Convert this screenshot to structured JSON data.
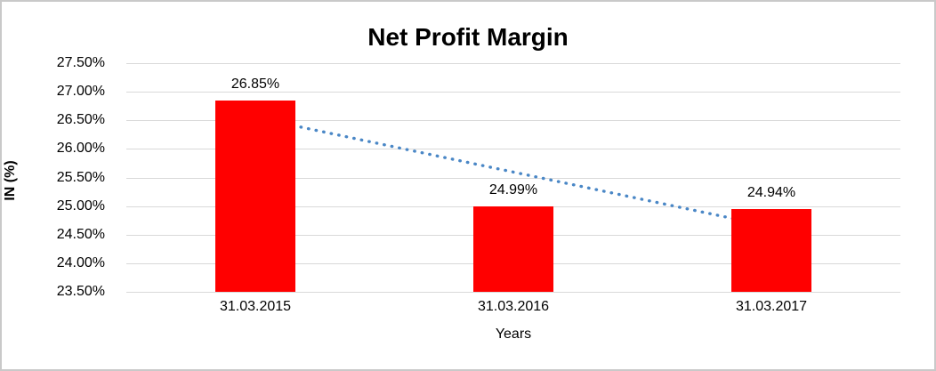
{
  "chart_data": {
    "type": "bar",
    "title": "Net Profit Margin",
    "xlabel": "Years",
    "ylabel": "IN (%)",
    "categories": [
      "31.03.2015",
      "31.03.2016",
      "31.03.2017"
    ],
    "values": [
      26.85,
      24.99,
      24.94
    ],
    "data_labels": [
      "26.85%",
      "24.99%",
      "24.94%"
    ],
    "yticks": [
      {
        "value": 27.5,
        "label": "27.50%"
      },
      {
        "value": 27.0,
        "label": "27.00%"
      },
      {
        "value": 26.5,
        "label": "26.50%"
      },
      {
        "value": 26.0,
        "label": "26.00%"
      },
      {
        "value": 25.5,
        "label": "25.50%"
      },
      {
        "value": 25.0,
        "label": "25.00%"
      },
      {
        "value": 24.5,
        "label": "24.50%"
      },
      {
        "value": 24.0,
        "label": "24.00%"
      },
      {
        "value": 23.5,
        "label": "23.50%"
      }
    ],
    "ylim": [
      23.5,
      27.5
    ],
    "grid": true,
    "legend": "none",
    "colors": {
      "bar": "#ff0000",
      "gridline": "#d9d9d9",
      "trendline": "#4a87c6",
      "text": "#000000",
      "frame_border": "#c9c9c9"
    },
    "trendline": {
      "type": "linear",
      "style": "dotted",
      "start_value": 26.55,
      "end_value": 24.64
    }
  }
}
